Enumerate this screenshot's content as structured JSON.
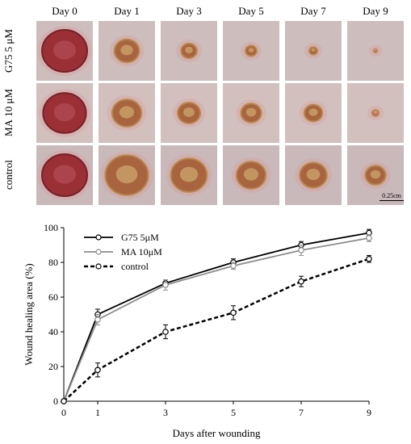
{
  "figure": {
    "days": [
      "Day 0",
      "Day 1",
      "Day 3",
      "Day 5",
      "Day 7",
      "Day 9"
    ],
    "rows": [
      {
        "label_line1": "G75",
        "label_line2": "5 μM",
        "wound_sizes": [
          1.0,
          0.55,
          0.35,
          0.25,
          0.18,
          0.08
        ]
      },
      {
        "label_line1": "MA",
        "label_line2": "10 μM",
        "wound_sizes": [
          0.95,
          0.65,
          0.5,
          0.45,
          0.4,
          0.15
        ]
      },
      {
        "label_line1": "control",
        "label_line2": "",
        "wound_sizes": [
          1.0,
          0.95,
          0.8,
          0.65,
          0.6,
          0.45
        ]
      }
    ],
    "scale_bar": "0.25cm"
  },
  "chart_data": {
    "type": "line",
    "xlabel": "Days after wounding",
    "ylabel": "Wound healing area (%)",
    "x": [
      0,
      1,
      3,
      5,
      7,
      9
    ],
    "xlim": [
      0,
      9
    ],
    "ylim": [
      0,
      100
    ],
    "xticks": [
      0,
      1,
      3,
      5,
      7,
      9
    ],
    "yticks": [
      0,
      20,
      40,
      60,
      80,
      100
    ],
    "legend_position": "top-left",
    "series": [
      {
        "name": "G75 5μM",
        "values": [
          0,
          50,
          68,
          80,
          90,
          97
        ],
        "errors": [
          0,
          3,
          2,
          2,
          2,
          2
        ],
        "color": "#000000",
        "style": "solid"
      },
      {
        "name": "MA 10μM",
        "values": [
          0,
          47,
          67,
          78,
          87,
          94
        ],
        "errors": [
          0,
          3,
          3,
          2,
          3,
          2
        ],
        "color": "#8c8c8c",
        "style": "solid"
      },
      {
        "name": "control",
        "values": [
          0,
          18,
          40,
          51,
          69,
          82
        ],
        "errors": [
          0,
          4,
          4,
          4,
          3,
          2
        ],
        "color": "#000000",
        "style": "dashed"
      }
    ]
  }
}
